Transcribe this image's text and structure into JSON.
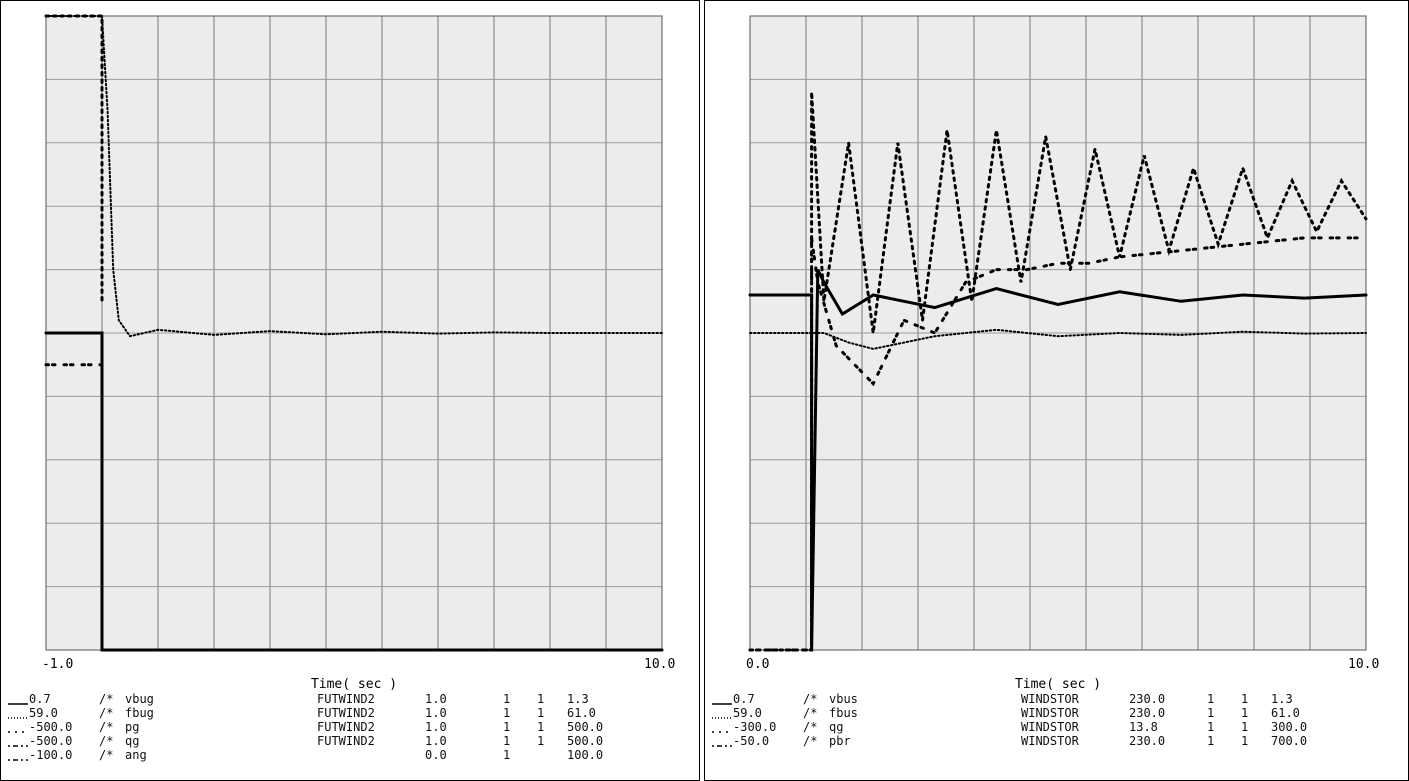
{
  "panels": [
    {
      "xaxis": {
        "label": "Time( sec )",
        "min": -1.0,
        "max": 10.0,
        "min_label": "-1.0",
        "max_label": "10.0"
      },
      "legend": [
        {
          "style": "solid",
          "min": "0.7",
          "sep": "/*",
          "name": "vbug",
          "bus": "FUTWIND2",
          "v1": "1.0",
          "n1": "1",
          "n2": "1",
          "max": "1.3"
        },
        {
          "style": "dotted",
          "min": "59.0",
          "sep": "/*",
          "name": "fbug",
          "bus": "FUTWIND2",
          "v1": "1.0",
          "n1": "1",
          "n2": "1",
          "max": "61.0"
        },
        {
          "style": "dashed",
          "min": "-500.0",
          "sep": "/*",
          "name": "pg",
          "bus": "FUTWIND2",
          "v1": "1.0",
          "n1": "1",
          "n2": "1",
          "max": "500.0"
        },
        {
          "style": "dashdot",
          "min": "-500.0",
          "sep": "/*",
          "name": "qg",
          "bus": "FUTWIND2",
          "v1": "1.0",
          "n1": "1",
          "n2": "1",
          "max": "500.0"
        },
        {
          "style": "dashdot2",
          "min": "-100.0",
          "sep": "/*",
          "name": "ang",
          "bus": "",
          "v1": "0.0",
          "n1": "1",
          "n2": "",
          "max": "100.0"
        }
      ]
    },
    {
      "xaxis": {
        "label": "Time( sec )",
        "min": 0.0,
        "max": 10.0,
        "min_label": "0.0",
        "max_label": "10.0"
      },
      "legend": [
        {
          "style": "solid",
          "min": "0.7",
          "sep": "/*",
          "name": "vbus",
          "bus": "WINDSTOR",
          "v1": "230.0",
          "n1": "1",
          "n2": "1",
          "max": "1.3"
        },
        {
          "style": "dotted",
          "min": "59.0",
          "sep": "/*",
          "name": "fbus",
          "bus": "WINDSTOR",
          "v1": "230.0",
          "n1": "1",
          "n2": "1",
          "max": "61.0"
        },
        {
          "style": "dashed",
          "min": "-300.0",
          "sep": "/*",
          "name": "qg",
          "bus": "WINDSTOR",
          "v1": "13.8",
          "n1": "1",
          "n2": "1",
          "max": "300.0"
        },
        {
          "style": "dashdot",
          "min": "-50.0",
          "sep": "/*",
          "name": "pbr",
          "bus": "WINDSTOR",
          "v1": "230.0",
          "n1": "1",
          "n2": "1",
          "max": "700.0"
        }
      ]
    }
  ],
  "chart_data": [
    {
      "type": "line",
      "xlim": [
        -1.0,
        10.0
      ],
      "ylim": [
        0,
        1
      ],
      "grid": true,
      "legend_placement": "bottom",
      "series": [
        {
          "name": "vbug",
          "style": "solid",
          "x": [
            -1.0,
            -0.2,
            -0.01,
            0.0,
            0.0,
            10.0
          ],
          "y": [
            0.5,
            0.5,
            0.5,
            0.5,
            0.0,
            0.0
          ]
        },
        {
          "name": "fbug",
          "style": "dotted",
          "x": [
            -1.0,
            0.0,
            0.1,
            0.2,
            0.3,
            0.5,
            1.0,
            2.0,
            3.0,
            4.0,
            5.0,
            6.0,
            7.0,
            8.0,
            9.0,
            10.0
          ],
          "y": [
            1.0,
            1.0,
            0.85,
            0.6,
            0.52,
            0.495,
            0.505,
            0.497,
            0.503,
            0.498,
            0.502,
            0.499,
            0.501,
            0.5,
            0.5,
            0.5
          ]
        },
        {
          "name": "pg",
          "style": "dashed",
          "x": [
            -1.0,
            0.0,
            0.0
          ],
          "y": [
            1.0,
            1.0,
            0.55
          ]
        },
        {
          "name": "qg",
          "style": "dashdot",
          "x": [
            -1.0,
            0.0,
            0.0
          ],
          "y": [
            0.45,
            0.45,
            0.05
          ]
        }
      ]
    },
    {
      "type": "line",
      "xlim": [
        0.0,
        10.0
      ],
      "ylim": [
        0,
        1
      ],
      "grid": true,
      "legend_placement": "bottom",
      "series": [
        {
          "name": "vbus",
          "style": "solid",
          "x": [
            0.0,
            1.0,
            1.0,
            1.1,
            1.2,
            1.5,
            2.0,
            3.0,
            4.0,
            5.0,
            6.0,
            7.0,
            8.0,
            9.0,
            10.0
          ],
          "y": [
            0.56,
            0.56,
            0.0,
            0.6,
            0.58,
            0.53,
            0.56,
            0.54,
            0.57,
            0.545,
            0.565,
            0.55,
            0.56,
            0.555,
            0.56
          ]
        },
        {
          "name": "fbus",
          "style": "dotted",
          "x": [
            0.0,
            1.0,
            1.2,
            1.6,
            2.0,
            3.0,
            4.0,
            5.0,
            6.0,
            7.0,
            8.0,
            9.0,
            10.0
          ],
          "y": [
            0.5,
            0.5,
            0.5,
            0.485,
            0.475,
            0.495,
            0.505,
            0.495,
            0.5,
            0.497,
            0.502,
            0.499,
            0.5
          ]
        },
        {
          "name": "qg",
          "style": "dashed",
          "x": [
            0.0,
            1.0,
            1.0,
            1.2,
            1.6,
            2.0,
            2.4,
            2.8,
            3.2,
            3.6,
            4.0,
            4.4,
            4.8,
            5.2,
            5.6,
            6.0,
            6.4,
            6.8,
            7.2,
            7.6,
            8.0,
            8.4,
            8.8,
            9.2,
            9.6,
            10.0
          ],
          "y": [
            0.0,
            0.0,
            0.88,
            0.55,
            0.8,
            0.5,
            0.8,
            0.52,
            0.82,
            0.55,
            0.82,
            0.58,
            0.81,
            0.6,
            0.79,
            0.62,
            0.78,
            0.63,
            0.76,
            0.64,
            0.76,
            0.65,
            0.74,
            0.66,
            0.74,
            0.68
          ]
        },
        {
          "name": "pbr",
          "style": "dashdot",
          "x": [
            0.0,
            1.0,
            1.0,
            1.1,
            1.4,
            2.0,
            2.5,
            3.0,
            3.5,
            4.0,
            4.5,
            5.0,
            5.5,
            6.0,
            7.0,
            8.0,
            9.0,
            10.0
          ],
          "y": [
            0.0,
            0.0,
            0.65,
            0.58,
            0.48,
            0.42,
            0.52,
            0.5,
            0.58,
            0.6,
            0.6,
            0.61,
            0.61,
            0.62,
            0.63,
            0.64,
            0.65,
            0.65
          ]
        }
      ]
    }
  ]
}
